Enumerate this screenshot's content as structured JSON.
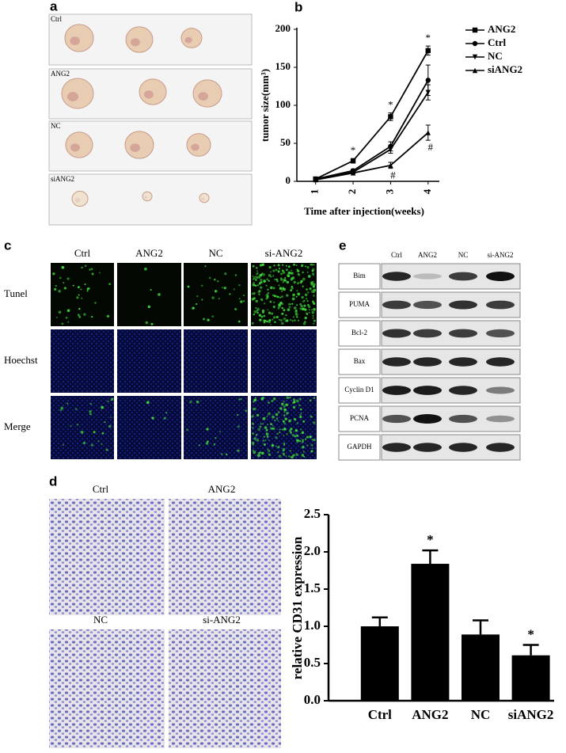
{
  "panels": {
    "a": {
      "letter": "a",
      "labels": [
        "Ctrl",
        "ANG2",
        "NC",
        "siANG2"
      ]
    },
    "b": {
      "letter": "b"
    },
    "c": {
      "letter": "c",
      "columns": [
        "Ctrl",
        "ANG2",
        "NC",
        "si-ANG2"
      ],
      "rows": [
        "Tunel",
        "Hoechst",
        "Merge"
      ]
    },
    "d": {
      "letter": "d",
      "labels": [
        "Ctrl",
        "ANG2",
        "NC",
        "si-ANG2"
      ]
    },
    "e": {
      "letter": "e",
      "columns": [
        "Ctrl",
        "ANG2",
        "NC",
        "si-ANG2"
      ],
      "rows": [
        "Bim",
        "PUMA",
        "Bcl-2",
        "Bax",
        "Cyclin D1",
        "PCNA",
        "GAPDH"
      ]
    }
  },
  "chart_data": [
    {
      "type": "line",
      "y_label": "tumor size(mm³)",
      "x_label": "Time after injection(weeks)",
      "x": [
        1,
        2,
        3,
        4
      ],
      "xlim": [
        0.5,
        4.3
      ],
      "xticks": [
        1,
        2,
        3,
        4
      ],
      "ylim": [
        0,
        200
      ],
      "yticks": [
        0,
        50,
        100,
        150,
        200
      ],
      "series": [
        {
          "name": "ANG2",
          "color": "#000",
          "marker": "square",
          "values": [
            3,
            27,
            85,
            172
          ],
          "errors": [
            2,
            3,
            5,
            6
          ],
          "marks": [
            null,
            "*",
            "*",
            "*"
          ]
        },
        {
          "name": "Ctrl",
          "color": "#000",
          "marker": "circle",
          "values": [
            3,
            14,
            46,
            133
          ],
          "errors": [
            1,
            2,
            6,
            20
          ]
        },
        {
          "name": "NC",
          "color": "#000",
          "marker": "triangle-down",
          "values": [
            3,
            12,
            42,
            117
          ],
          "errors": [
            1,
            2,
            5,
            10
          ]
        },
        {
          "name": "siANG2",
          "color": "#000",
          "marker": "triangle-up",
          "values": [
            2,
            11,
            21,
            64
          ],
          "errors": [
            1,
            1,
            4,
            10
          ],
          "marks": [
            null,
            null,
            "#",
            "#"
          ]
        }
      ]
    },
    {
      "type": "bar",
      "y_label": "relative CD31 expression",
      "categories": [
        "Ctrl",
        "ANG2",
        "NC",
        "siANG2"
      ],
      "values": [
        1.0,
        1.84,
        0.89,
        0.61
      ],
      "errors": [
        0.12,
        0.18,
        0.19,
        0.14
      ],
      "marks": [
        null,
        "*",
        null,
        "*"
      ],
      "color": "#000",
      "ylim": [
        0,
        2.5
      ],
      "yticks": [
        {
          "value": 0,
          "label": "0.0"
        },
        0.5,
        {
          "value": 1,
          "label": "1.0"
        },
        1.5,
        {
          "value": 2,
          "label": "2.0"
        },
        2.5
      ]
    }
  ]
}
